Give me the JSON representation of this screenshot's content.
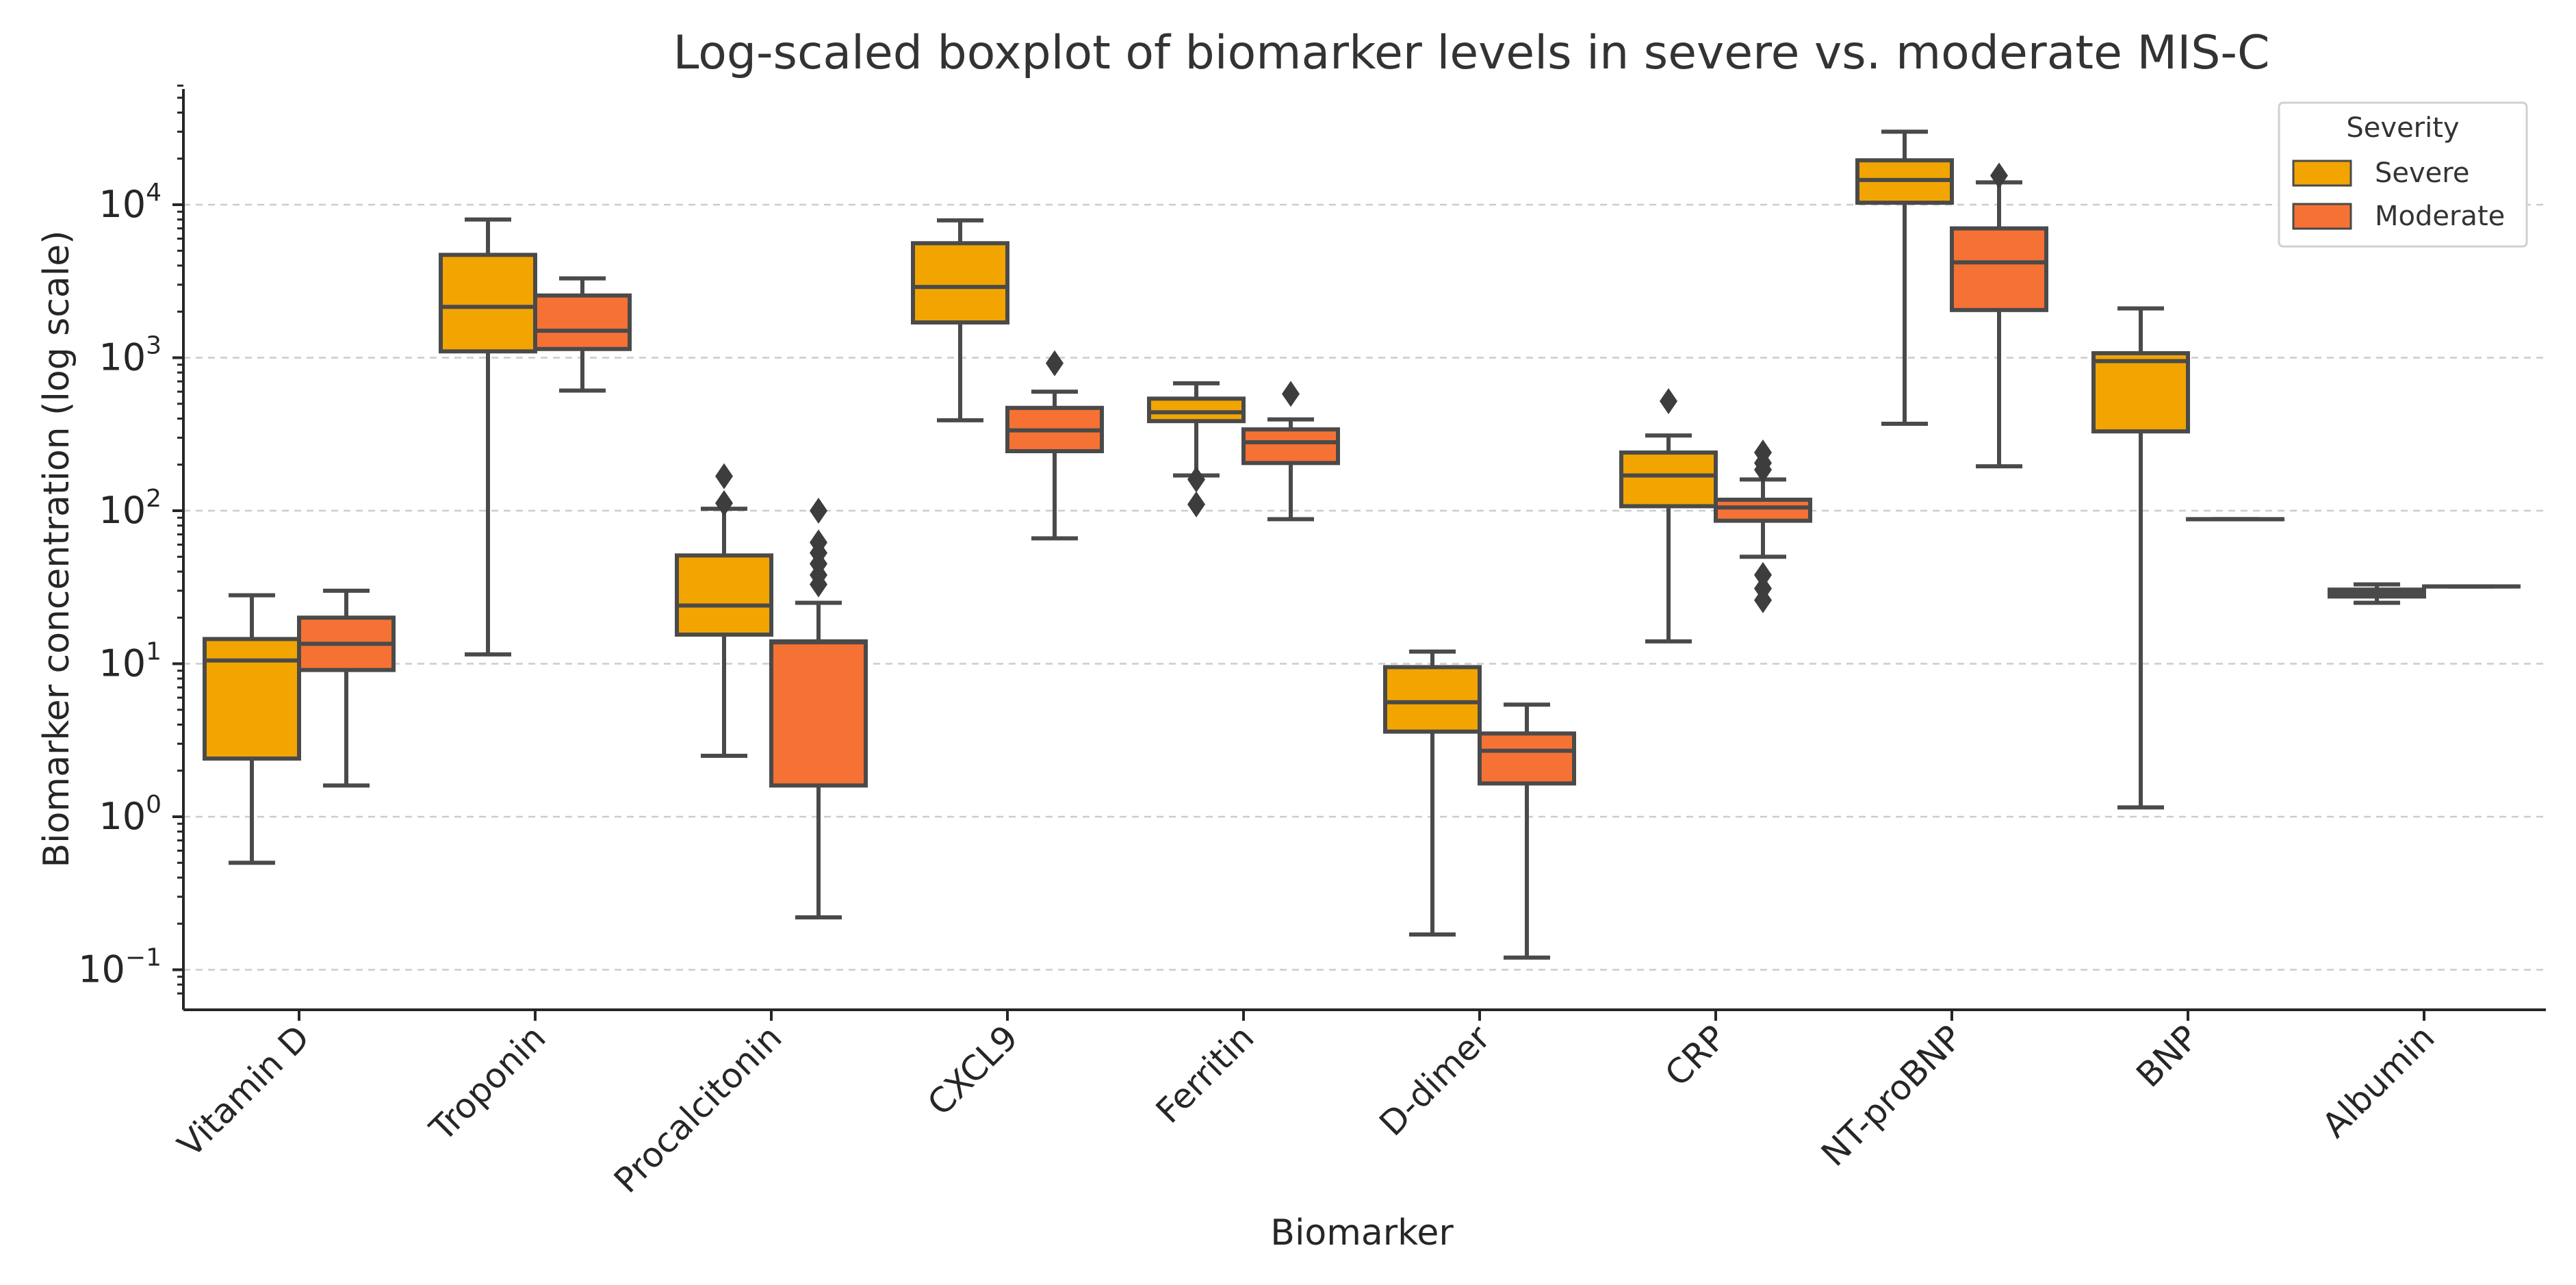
{
  "chart_data": {
    "type": "boxplot",
    "title": "Log-scaled boxplot of biomarker levels in severe vs. moderate MIS-C",
    "xlabel": "Biomarker",
    "ylabel": "Biomarker concentration (log scale)",
    "yscale": "log",
    "ylim": [
      0.065,
      60000
    ],
    "yticks": [
      {
        "value": 0.1,
        "base": "10",
        "exp": "−1"
      },
      {
        "value": 1,
        "base": "10",
        "exp": "0"
      },
      {
        "value": 10,
        "base": "10",
        "exp": "1"
      },
      {
        "value": 100,
        "base": "10",
        "exp": "2"
      },
      {
        "value": 1000,
        "base": "10",
        "exp": "3"
      },
      {
        "value": 10000,
        "base": "10",
        "exp": "4"
      }
    ],
    "grid": true,
    "categories": [
      "Vitamin D",
      "Troponin",
      "Procalcitonin",
      "CXCL9",
      "Ferritin",
      "D-dimer",
      "CRP",
      "NT-proBNP",
      "BNP",
      "Albumin"
    ],
    "legend": {
      "title": "Severity",
      "position": "top-right"
    },
    "series": [
      {
        "name": "Severe",
        "color": "#f2a500",
        "boxes": [
          {
            "whislo": 0.5,
            "q1": 2.4,
            "med": 10.5,
            "q3": 14.5,
            "whishi": 28,
            "fliers": []
          },
          {
            "whislo": 11.5,
            "q1": 1100,
            "med": 2150,
            "q3": 4700,
            "whishi": 8000,
            "fliers": []
          },
          {
            "whislo": 2.5,
            "q1": 15.5,
            "med": 24,
            "q3": 51,
            "whishi": 103,
            "fliers": [
              112,
              168
            ]
          },
          {
            "whislo": 390,
            "q1": 1700,
            "med": 2900,
            "q3": 5600,
            "whishi": 7900,
            "fliers": []
          },
          {
            "whislo": 170,
            "q1": 385,
            "med": 440,
            "q3": 540,
            "whishi": 680,
            "fliers": [
              160,
              110
            ]
          },
          {
            "whislo": 0.17,
            "q1": 3.6,
            "med": 5.6,
            "q3": 9.5,
            "whishi": 12,
            "fliers": []
          },
          {
            "whislo": 14,
            "q1": 107,
            "med": 170,
            "q3": 240,
            "whishi": 310,
            "fliers": [
              520
            ]
          },
          {
            "whislo": 370,
            "q1": 10300,
            "med": 14500,
            "q3": 19500,
            "whishi": 30000,
            "fliers": []
          },
          {
            "whislo": 1.15,
            "q1": 330,
            "med": 950,
            "q3": 1070,
            "whishi": 2100,
            "fliers": []
          },
          {
            "whislo": 25,
            "q1": 27.5,
            "med": 29,
            "q3": 30.5,
            "whishi": 33,
            "fliers": []
          }
        ]
      },
      {
        "name": "Moderate",
        "color": "#f57234",
        "boxes": [
          {
            "whislo": 1.6,
            "q1": 9.1,
            "med": 13.5,
            "q3": 20,
            "whishi": 30,
            "fliers": []
          },
          {
            "whislo": 610,
            "q1": 1140,
            "med": 1500,
            "q3": 2550,
            "whishi": 3300,
            "fliers": []
          },
          {
            "whislo": 0.22,
            "q1": 1.6,
            "med": 13.8,
            "q3": 14,
            "whishi": 25,
            "fliers": [
              33,
              38,
              45,
              53,
              62,
              100
            ]
          },
          {
            "whislo": 66,
            "q1": 245,
            "med": 335,
            "q3": 470,
            "whishi": 600,
            "fliers": [
              920
            ]
          },
          {
            "whislo": 88,
            "q1": 205,
            "med": 280,
            "q3": 340,
            "whishi": 395,
            "fliers": [
              580
            ]
          },
          {
            "whislo": 0.12,
            "q1": 1.65,
            "med": 2.7,
            "q3": 3.5,
            "whishi": 5.4,
            "fliers": []
          },
          {
            "whislo": 50,
            "q1": 86,
            "med": 105,
            "q3": 118,
            "whishi": 160,
            "fliers": [
              26,
              31,
              38,
              185,
              205,
              240
            ]
          },
          {
            "whislo": 195,
            "q1": 2050,
            "med": 4200,
            "q3": 7000,
            "whishi": 14000,
            "fliers": [
              15500
            ]
          },
          {
            "whislo": 88,
            "q1": 88,
            "med": 88,
            "q3": 88,
            "whishi": 88,
            "fliers": []
          },
          {
            "whislo": 32,
            "q1": 32,
            "med": 32,
            "q3": 32,
            "whishi": 32,
            "fliers": []
          }
        ]
      }
    ]
  }
}
